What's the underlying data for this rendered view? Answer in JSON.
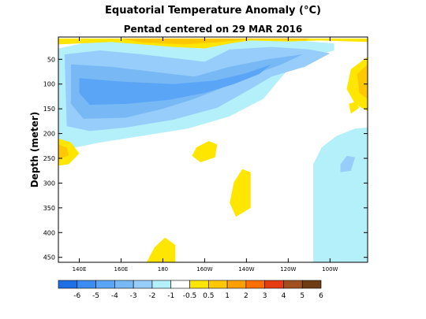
{
  "chart_data": {
    "type": "heatmap",
    "title": "Equatorial Temperature Anomaly (°C)",
    "subtitle": "Pentad centered on 29 MAR 2016",
    "ylabel": "Depth (meter)",
    "xlabel": "",
    "x_ticks": [
      "140E",
      "160E",
      "180",
      "160W",
      "140W",
      "120W",
      "100W"
    ],
    "x_tick_lon": [
      140,
      160,
      180,
      200,
      220,
      240,
      260
    ],
    "xlim_lon": [
      130,
      278
    ],
    "y_ticks": [
      50,
      100,
      150,
      200,
      250,
      300,
      350,
      400,
      450
    ],
    "ylim": [
      5,
      460
    ],
    "colorbar": {
      "levels": [
        "-6",
        "-5",
        "-4",
        "-3",
        "-2",
        "-1",
        "-0.5",
        "0.5",
        "1",
        "2",
        "3",
        "4",
        "5",
        "6"
      ],
      "colors": [
        "#1e6ee6",
        "#3c8cf0",
        "#5aa5f5",
        "#78b9f5",
        "#96cdfa",
        "#b4f0fa",
        "#ffffff",
        "#ffe600",
        "#ffc800",
        "#ffa000",
        "#ff6e00",
        "#e63c14",
        "#a0501e",
        "#6e3c14"
      ]
    },
    "regions": [
      {
        "value": "-0.5 to -1",
        "color": "#b4f0fa",
        "points": [
          [
            130,
            28
          ],
          [
            148,
            12
          ],
          [
            165,
            18
          ],
          [
            185,
            22
          ],
          [
            198,
            28
          ],
          [
            212,
            15
          ],
          [
            228,
            10
          ],
          [
            245,
            12
          ],
          [
            262,
            18
          ],
          [
            262,
            32
          ],
          [
            250,
            45
          ],
          [
            240,
            70
          ],
          [
            235,
            95
          ],
          [
            228,
            130
          ],
          [
            212,
            165
          ],
          [
            192,
            190
          ],
          [
            165,
            208
          ],
          [
            150,
            218
          ],
          [
            130,
            235
          ]
        ]
      },
      {
        "value": "-1 to -2",
        "color": "#96cdfa",
        "points": [
          [
            133,
            40
          ],
          [
            150,
            32
          ],
          [
            170,
            40
          ],
          [
            190,
            50
          ],
          [
            200,
            55
          ],
          [
            212,
            30
          ],
          [
            232,
            25
          ],
          [
            250,
            30
          ],
          [
            260,
            38
          ],
          [
            248,
            65
          ],
          [
            232,
            85
          ],
          [
            222,
            110
          ],
          [
            206,
            148
          ],
          [
            185,
            172
          ],
          [
            162,
            188
          ],
          [
            145,
            195
          ],
          [
            134,
            185
          ]
        ]
      },
      {
        "value": "-2 to -3",
        "color": "#78b9f5",
        "points": [
          [
            136,
            60
          ],
          [
            155,
            65
          ],
          [
            175,
            75
          ],
          [
            195,
            85
          ],
          [
            212,
            65
          ],
          [
            230,
            50
          ],
          [
            247,
            40
          ],
          [
            236,
            62
          ],
          [
            222,
            82
          ],
          [
            210,
            105
          ],
          [
            195,
            130
          ],
          [
            180,
            150
          ],
          [
            162,
            168
          ],
          [
            142,
            170
          ],
          [
            136,
            140
          ]
        ]
      },
      {
        "value": "-3 to -4",
        "color": "#5aa5f5",
        "points": [
          [
            140,
            88
          ],
          [
            160,
            95
          ],
          [
            185,
            100
          ],
          [
            205,
            93
          ],
          [
            220,
            78
          ],
          [
            232,
            60
          ],
          [
            226,
            80
          ],
          [
            214,
            100
          ],
          [
            200,
            118
          ],
          [
            183,
            132
          ],
          [
            163,
            140
          ],
          [
            145,
            142
          ],
          [
            140,
            118
          ]
        ]
      },
      {
        "value": "-0.5 to -1",
        "color": "#b4f0fa",
        "points": [
          [
            252,
            262
          ],
          [
            256,
            228
          ],
          [
            263,
            205
          ],
          [
            272,
            190
          ],
          [
            278,
            188
          ],
          [
            278,
            460
          ],
          [
            252,
            460
          ]
        ]
      },
      {
        "value": "-1 to -2",
        "color": "#96cdfa",
        "points": [
          [
            265,
            262
          ],
          [
            268,
            245
          ],
          [
            272,
            248
          ],
          [
            270,
            275
          ],
          [
            265,
            278
          ]
        ]
      },
      {
        "value": "0.5 to 1",
        "color": "#ffe600",
        "points": [
          [
            130,
            8
          ],
          [
            278,
            8
          ],
          [
            278,
            15
          ],
          [
            255,
            12
          ],
          [
            240,
            14
          ],
          [
            222,
            12
          ],
          [
            212,
            18
          ],
          [
            200,
            28
          ],
          [
            185,
            25
          ],
          [
            170,
            20
          ],
          [
            155,
            15
          ],
          [
            130,
            20
          ]
        ]
      },
      {
        "value": "1 to 2",
        "color": "#ffc800",
        "points": [
          [
            160,
            8
          ],
          [
            250,
            8
          ],
          [
            248,
            12
          ],
          [
            232,
            10
          ],
          [
            220,
            10
          ],
          [
            205,
            16
          ],
          [
            190,
            20
          ],
          [
            170,
            16
          ]
        ]
      },
      {
        "value": "0.5 to 1",
        "color": "#ffe600",
        "points": [
          [
            270,
            70
          ],
          [
            278,
            45
          ],
          [
            278,
            155
          ],
          [
            272,
            140
          ],
          [
            268,
            110
          ]
        ]
      },
      {
        "value": "1 to 2",
        "color": "#ffc800",
        "points": [
          [
            273,
            80
          ],
          [
            278,
            60
          ],
          [
            278,
            130
          ],
          [
            274,
            118
          ]
        ]
      },
      {
        "value": "0.5 to 1",
        "color": "#ffe600",
        "points": [
          [
            130,
            210
          ],
          [
            136,
            218
          ],
          [
            140,
            240
          ],
          [
            135,
            262
          ],
          [
            130,
            265
          ]
        ]
      },
      {
        "value": "1 to 2",
        "color": "#ffc800",
        "points": [
          [
            130,
            222
          ],
          [
            134,
            228
          ],
          [
            135,
            244
          ],
          [
            130,
            252
          ]
        ]
      },
      {
        "value": "0.5 to 1",
        "color": "#ffe600",
        "points": [
          [
            196,
            228
          ],
          [
            202,
            215
          ],
          [
            206,
            222
          ],
          [
            205,
            248
          ],
          [
            198,
            258
          ],
          [
            194,
            245
          ]
        ]
      },
      {
        "value": "0.5 to 1",
        "color": "#ffe600",
        "points": [
          [
            214,
            298
          ],
          [
            218,
            272
          ],
          [
            222,
            278
          ],
          [
            222,
            350
          ],
          [
            215,
            368
          ],
          [
            212,
            340
          ]
        ]
      },
      {
        "value": "0.5 to 1",
        "color": "#ffe600",
        "points": [
          [
            172,
            462
          ],
          [
            176,
            430
          ],
          [
            181,
            410
          ],
          [
            186,
            425
          ],
          [
            186,
            462
          ]
        ]
      },
      {
        "value": "0.5 to 1",
        "color": "#ffe600",
        "points": [
          [
            269,
            140
          ],
          [
            272,
            136
          ],
          [
            274,
            148
          ],
          [
            270,
            160
          ]
        ]
      }
    ]
  }
}
